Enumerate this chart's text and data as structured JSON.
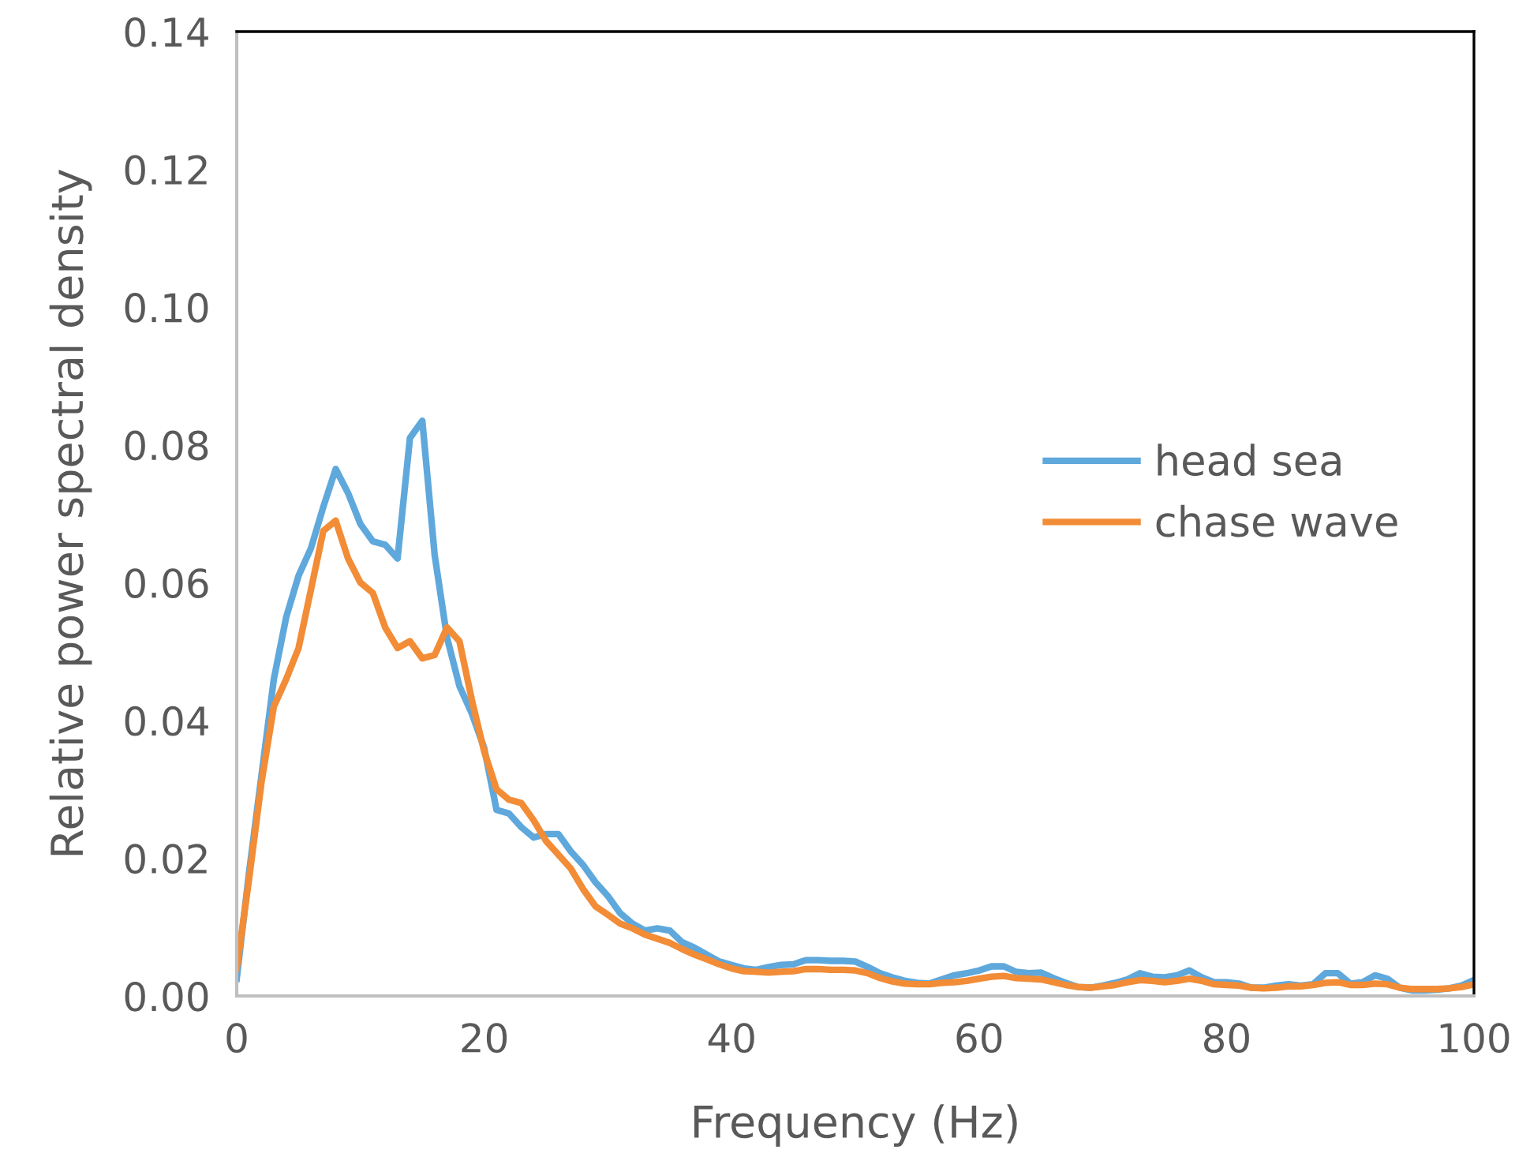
{
  "chart_data": {
    "type": "line",
    "xlabel": "Frequency (Hz)",
    "ylabel": "Relative power spectral density",
    "x": [
      0,
      1,
      2,
      3,
      4,
      5,
      6,
      7,
      8,
      9,
      10,
      11,
      12,
      13,
      14,
      15,
      16,
      17,
      18,
      19,
      20,
      21,
      22,
      23,
      24,
      25,
      26,
      27,
      28,
      29,
      30,
      31,
      32,
      33,
      34,
      35,
      36,
      37,
      38,
      39,
      40,
      41,
      42,
      43,
      44,
      45,
      46,
      47,
      48,
      49,
      50,
      51,
      52,
      53,
      54,
      55,
      56,
      57,
      58,
      59,
      60,
      61,
      62,
      63,
      64,
      65,
      66,
      67,
      68,
      69,
      70,
      71,
      72,
      73,
      74,
      75,
      76,
      77,
      78,
      79,
      80,
      81,
      82,
      83,
      84,
      85,
      86,
      87,
      88,
      89,
      90,
      91,
      92,
      93,
      94,
      95,
      96,
      97,
      98,
      99,
      100
    ],
    "series": [
      {
        "name": "head sea",
        "color": "#5fa8dc",
        "values": [
          0.0025,
          0.018,
          0.032,
          0.046,
          0.055,
          0.061,
          0.065,
          0.071,
          0.0765,
          0.073,
          0.0685,
          0.066,
          0.0655,
          0.0635,
          0.081,
          0.0835,
          0.064,
          0.052,
          0.045,
          0.041,
          0.036,
          0.027,
          0.0265,
          0.0245,
          0.023,
          0.0235,
          0.0235,
          0.021,
          0.019,
          0.0165,
          0.0145,
          0.012,
          0.0105,
          0.0095,
          0.0098,
          0.0095,
          0.0078,
          0.007,
          0.006,
          0.005,
          0.0045,
          0.004,
          0.0038,
          0.0042,
          0.0045,
          0.0046,
          0.0052,
          0.0052,
          0.0051,
          0.0051,
          0.005,
          0.0042,
          0.0033,
          0.0027,
          0.0022,
          0.0019,
          0.0018,
          0.0024,
          0.003,
          0.0033,
          0.0037,
          0.0043,
          0.0043,
          0.0035,
          0.0033,
          0.0034,
          0.0026,
          0.0019,
          0.0013,
          0.0012,
          0.0015,
          0.0019,
          0.0024,
          0.0033,
          0.0028,
          0.0027,
          0.003,
          0.0037,
          0.0027,
          0.002,
          0.002,
          0.0018,
          0.0012,
          0.0012,
          0.0015,
          0.0017,
          0.0015,
          0.0017,
          0.0033,
          0.0033,
          0.0018,
          0.002,
          0.003,
          0.0025,
          0.0012,
          0.0008,
          0.0008,
          0.0009,
          0.0011,
          0.0015,
          0.0023
        ]
      },
      {
        "name": "chase wave",
        "color": "#f28c36",
        "values": [
          0.004,
          0.017,
          0.031,
          0.042,
          0.046,
          0.0505,
          0.059,
          0.0675,
          0.069,
          0.0635,
          0.06,
          0.0585,
          0.0535,
          0.0505,
          0.0515,
          0.049,
          0.0495,
          0.0535,
          0.0515,
          0.043,
          0.0355,
          0.03,
          0.0285,
          0.028,
          0.0255,
          0.0225,
          0.0205,
          0.0185,
          0.0155,
          0.013,
          0.0118,
          0.0105,
          0.0098,
          0.0089,
          0.0083,
          0.0077,
          0.0068,
          0.006,
          0.0053,
          0.0046,
          0.004,
          0.0036,
          0.0035,
          0.0034,
          0.0035,
          0.0036,
          0.0039,
          0.0039,
          0.0038,
          0.0038,
          0.0037,
          0.0033,
          0.0026,
          0.0021,
          0.0018,
          0.0017,
          0.0017,
          0.0019,
          0.002,
          0.0022,
          0.0025,
          0.0028,
          0.0029,
          0.0026,
          0.0025,
          0.0024,
          0.002,
          0.0016,
          0.0013,
          0.0012,
          0.0014,
          0.0016,
          0.002,
          0.0023,
          0.0022,
          0.002,
          0.0022,
          0.0025,
          0.0022,
          0.0017,
          0.0016,
          0.0015,
          0.0012,
          0.0011,
          0.0012,
          0.0014,
          0.0014,
          0.0016,
          0.0019,
          0.002,
          0.0016,
          0.0016,
          0.0018,
          0.0017,
          0.0012,
          0.001,
          0.001,
          0.001,
          0.0011,
          0.0013,
          0.0017
        ]
      }
    ],
    "xlim": [
      0,
      100
    ],
    "xticks": [
      0,
      20,
      40,
      60,
      80,
      100
    ],
    "ylim": [
      0,
      0.14
    ],
    "yticks": [
      {
        "value": 0,
        "label": "0.00"
      },
      {
        "value": 0.02,
        "label": "0.02"
      },
      {
        "value": 0.04,
        "label": "0.04"
      },
      {
        "value": 0.06,
        "label": "0.06"
      },
      {
        "value": 0.08,
        "label": "0.08"
      },
      {
        "value": 0.1,
        "label": "0.10"
      },
      {
        "value": 0.12,
        "label": "0.12"
      },
      {
        "value": 0.14,
        "label": "0.14"
      }
    ],
    "legend": "right",
    "line_style": "solid",
    "marker": "none"
  }
}
